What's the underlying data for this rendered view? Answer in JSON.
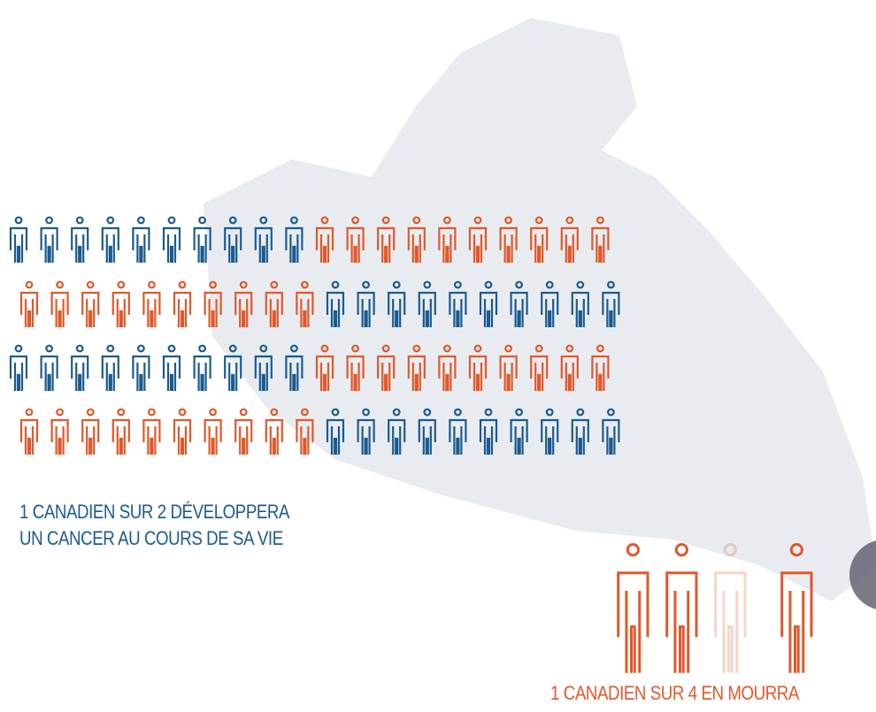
{
  "infographic": {
    "caption_1": {
      "line_1": "1 CANADIEN SUR 2 DÉVELOPPERA",
      "line_2": "UN CANCER AU COURS DE SA VIE"
    },
    "caption_2": "1 CANADIEN SUR 4 EN MOURRA"
  }
}
